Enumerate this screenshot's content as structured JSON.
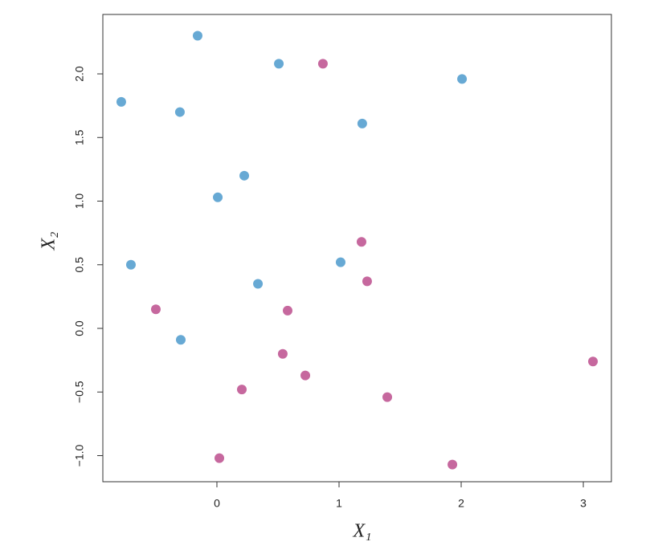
{
  "chart_data": {
    "type": "scatter",
    "xlabel": "X₁",
    "ylabel": "X₂",
    "xlim": [
      -0.934,
      3.23
    ],
    "ylim": [
      -1.205,
      2.467
    ],
    "xticks": [
      0,
      1,
      2,
      3
    ],
    "yticks": [
      {
        "value": -1.0,
        "label": "−1.0"
      },
      {
        "value": -0.5,
        "label": "−0.5"
      },
      {
        "value": 0.0,
        "label": "0.0"
      },
      {
        "value": 0.5,
        "label": "0.5"
      },
      {
        "value": 1.0,
        "label": "1.0"
      },
      {
        "value": 1.5,
        "label": "1.5"
      },
      {
        "value": 2.0,
        "label": "2.0"
      }
    ],
    "series": [
      {
        "color": "#67a9d4",
        "x": [
          -0.158,
          0.507,
          2.007,
          -0.783,
          -0.303,
          1.19,
          0.224,
          0.007,
          -0.704,
          1.013,
          0.336,
          -0.296
        ],
        "y": [
          2.3,
          2.08,
          1.96,
          1.78,
          1.7,
          1.61,
          1.2,
          1.03,
          0.5,
          0.52,
          0.35,
          -0.09
        ]
      },
      {
        "color": "#c6689e",
        "x": [
          0.868,
          1.184,
          1.23,
          -0.5,
          0.579,
          0.539,
          0.724,
          0.204,
          1.395,
          3.079,
          0.02,
          1.928
        ],
        "y": [
          2.08,
          0.68,
          0.37,
          0.15,
          0.14,
          -0.2,
          -0.37,
          -0.48,
          -0.54,
          -0.26,
          -1.02,
          -1.07
        ]
      }
    ]
  }
}
